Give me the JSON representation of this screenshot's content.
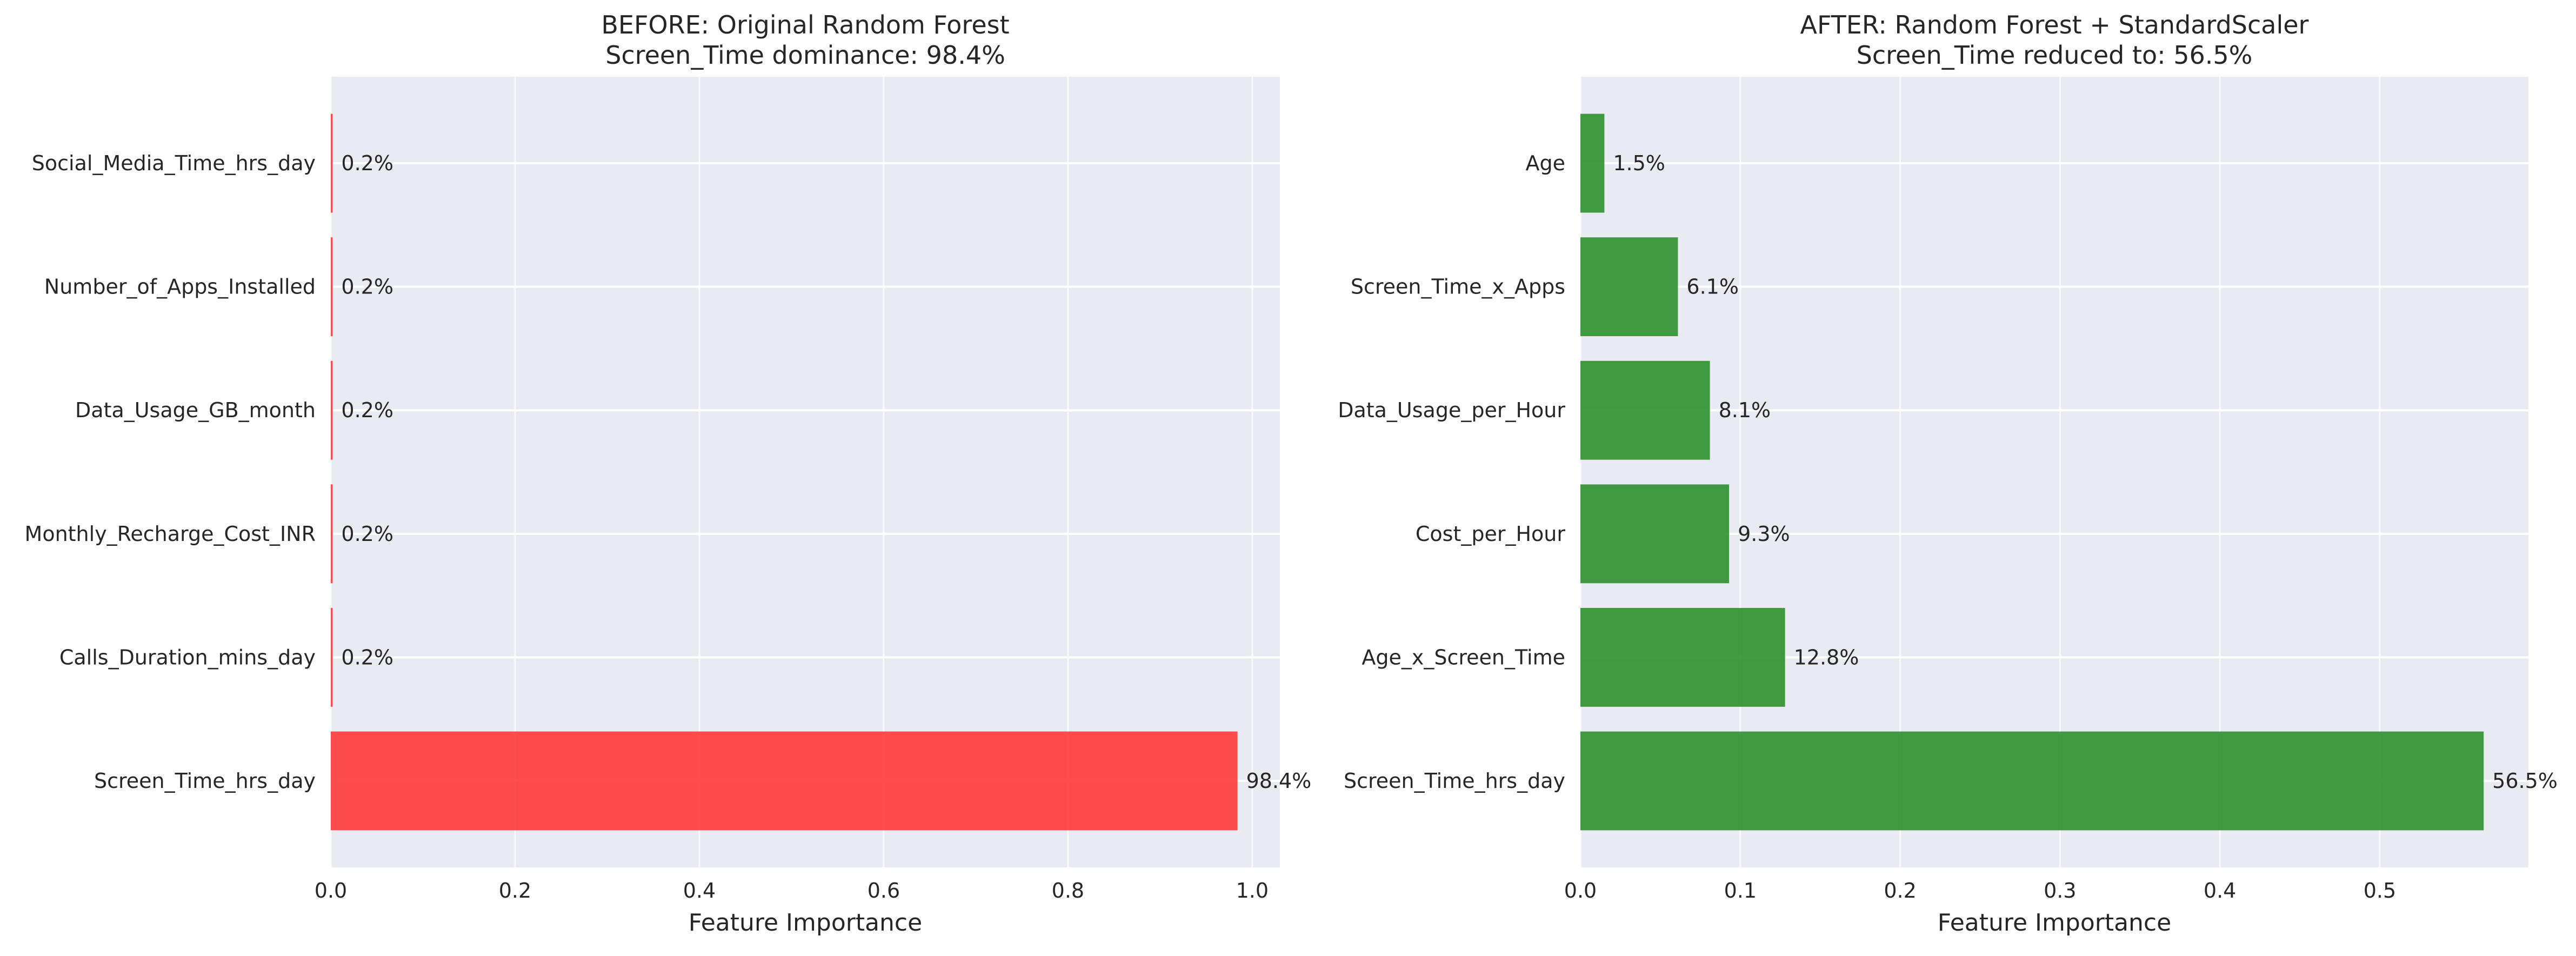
{
  "chart_data": [
    {
      "type": "bar",
      "orientation": "horizontal",
      "title": "BEFORE: Original Random Forest",
      "subtitle": "Screen_Time dominance: 98.4%",
      "xlabel": "Feature Importance",
      "ylabel": "",
      "xlim": [
        0,
        1.03
      ],
      "xticks": [
        0.0,
        0.2,
        0.4,
        0.6,
        0.8,
        1.0
      ],
      "xtick_labels": [
        "0.0",
        "0.2",
        "0.4",
        "0.6",
        "0.8",
        "1.0"
      ],
      "grid": true,
      "color": "#ff3a3a",
      "categories": [
        "Screen_Time_hrs_day",
        "Calls_Duration_mins_day",
        "Monthly_Recharge_Cost_INR",
        "Data_Usage_GB_month",
        "Number_of_Apps_Installed",
        "Social_Media_Time_hrs_day"
      ],
      "values": [
        0.984,
        0.002,
        0.002,
        0.002,
        0.002,
        0.002
      ],
      "data_labels": [
        "98.4%",
        "0.2%",
        "0.2%",
        "0.2%",
        "0.2%",
        "0.2%"
      ]
    },
    {
      "type": "bar",
      "orientation": "horizontal",
      "title": "AFTER: Random Forest + StandardScaler",
      "subtitle": "Screen_Time reduced to: 56.5%",
      "xlabel": "Feature Importance",
      "ylabel": "",
      "xlim": [
        0,
        0.593
      ],
      "xticks": [
        0.0,
        0.1,
        0.2,
        0.3,
        0.4,
        0.5
      ],
      "xtick_labels": [
        "0.0",
        "0.1",
        "0.2",
        "0.3",
        "0.4",
        "0.5"
      ],
      "grid": true,
      "color": "#2e8f2e",
      "categories": [
        "Screen_Time_hrs_day",
        "Age_x_Screen_Time",
        "Cost_per_Hour",
        "Data_Usage_per_Hour",
        "Screen_Time_x_Apps",
        "Age"
      ],
      "values": [
        0.565,
        0.128,
        0.093,
        0.081,
        0.061,
        0.015
      ],
      "data_labels": [
        "56.5%",
        "12.8%",
        "9.3%",
        "8.1%",
        "6.1%",
        "1.5%"
      ]
    }
  ]
}
